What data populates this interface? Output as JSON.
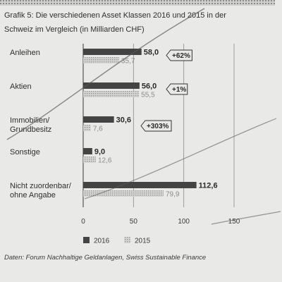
{
  "chart_data": {
    "type": "bar",
    "title_line1": "Grafik 5: Die verschiedenen Asset Klassen 2016 und 2015 in der",
    "title_line2": "Schweiz im Vergleich (in Milliarden CHF)",
    "categories": [
      [
        "Anleihen"
      ],
      [
        "Aktien"
      ],
      [
        "Immobilien/",
        "Grundbesitz"
      ],
      [
        "Sonstige"
      ],
      [
        "Nicht zuordenbar/",
        "ohne Angabe"
      ]
    ],
    "series": [
      {
        "name": "2016",
        "values": [
          58.0,
          56.0,
          30.6,
          9.0,
          112.6
        ],
        "labels": [
          "58,0",
          "56,0",
          "30,6",
          "9,0",
          "112,6"
        ],
        "color": "#444444"
      },
      {
        "name": "2015",
        "values": [
          35.7,
          55.5,
          7.6,
          12.6,
          79.9
        ],
        "labels": [
          "35,7",
          "55,5",
          "7,6",
          "12,6",
          "79,9"
        ],
        "color": "#b4b4b4"
      }
    ],
    "changes": [
      "+62%",
      "+1%",
      "+303%",
      "",
      ""
    ],
    "xticks": [
      0,
      50,
      100,
      150
    ],
    "xlim": [
      0,
      150
    ],
    "grid": true,
    "legend_position": "bottom",
    "source": "Daten: Forum Nachhaltige Geldanlagen, Swiss Sustainable Finance"
  }
}
